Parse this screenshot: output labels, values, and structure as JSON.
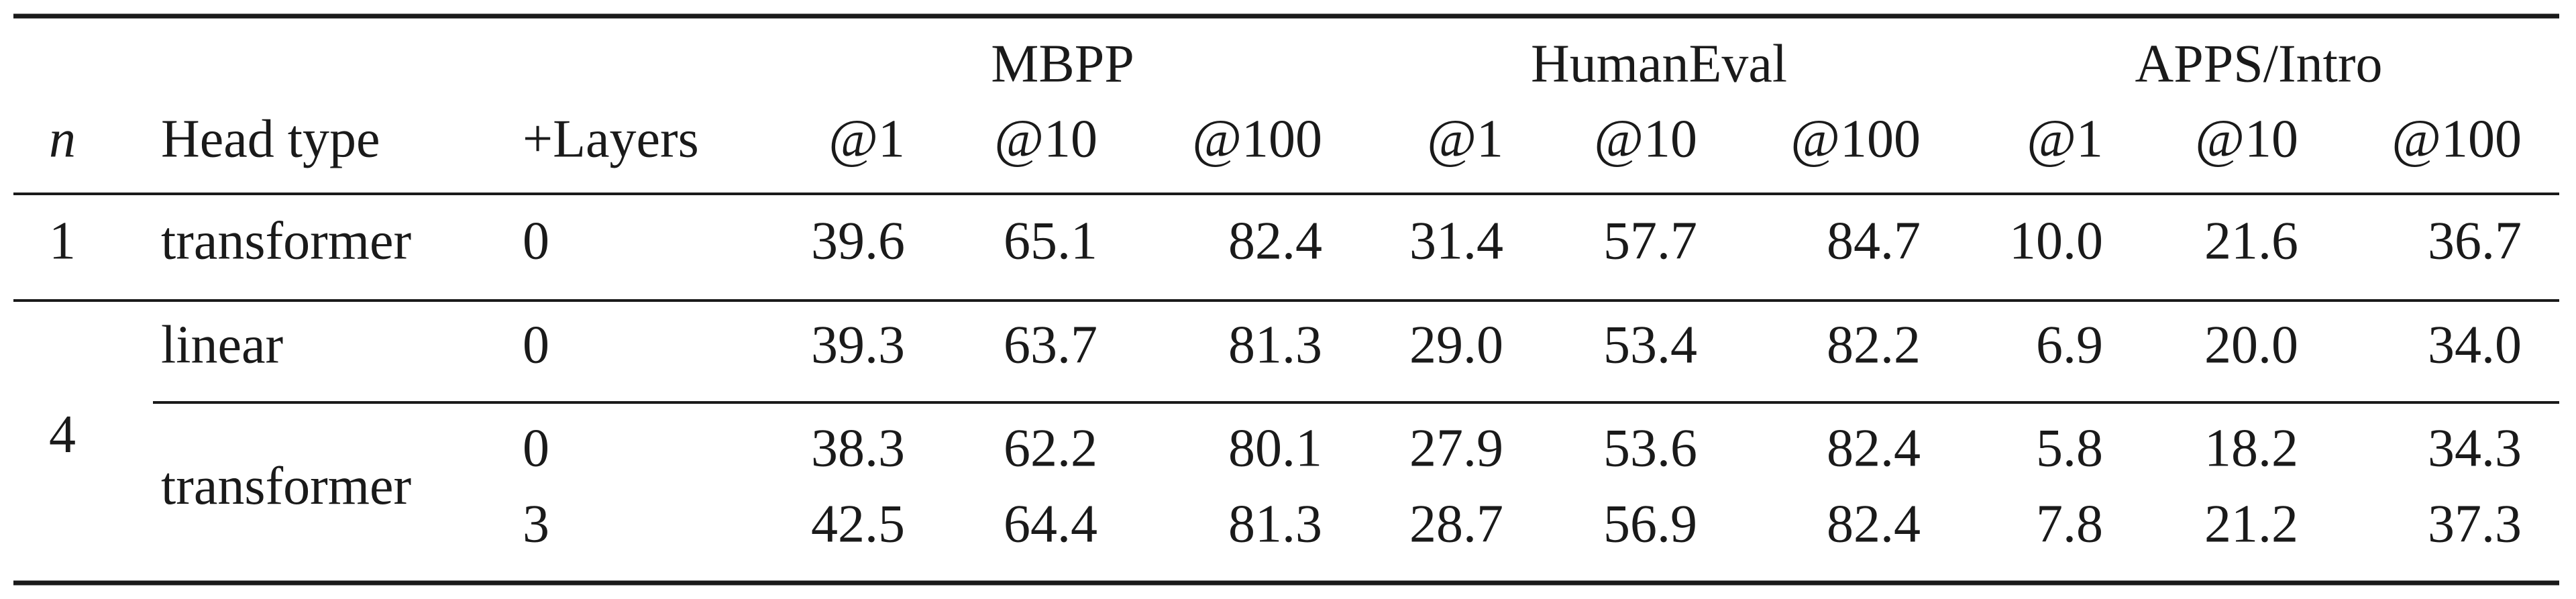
{
  "table": {
    "groups": [
      "MBPP",
      "HumanEval",
      "APPS/Intro"
    ],
    "columns": [
      "n",
      "Head type",
      "+Layers",
      "@1",
      "@10",
      "@100",
      "@1",
      "@10",
      "@100",
      "@1",
      "@10",
      "@100"
    ],
    "sections": [
      {
        "n": "1",
        "heads": [
          {
            "type": "transformer",
            "rows": [
              {
                "layers": "0",
                "scores": [
                  "39.6",
                  "65.1",
                  "82.4",
                  "31.4",
                  "57.7",
                  "84.7",
                  "10.0",
                  "21.6",
                  "36.7"
                ]
              }
            ]
          }
        ]
      },
      {
        "n": "4",
        "heads": [
          {
            "type": "linear",
            "rows": [
              {
                "layers": "0",
                "scores": [
                  "39.3",
                  "63.7",
                  "81.3",
                  "29.0",
                  "53.4",
                  "82.2",
                  "6.9",
                  "20.0",
                  "34.0"
                ]
              }
            ]
          },
          {
            "type": "transformer",
            "rows": [
              {
                "layers": "0",
                "scores": [
                  "38.3",
                  "62.2",
                  "80.1",
                  "27.9",
                  "53.6",
                  "82.4",
                  "5.8",
                  "18.2",
                  "34.3"
                ]
              },
              {
                "layers": "3",
                "scores": [
                  "42.5",
                  "64.4",
                  "81.3",
                  "28.7",
                  "56.9",
                  "82.4",
                  "7.8",
                  "21.2",
                  "37.3"
                ]
              }
            ]
          }
        ]
      }
    ]
  }
}
